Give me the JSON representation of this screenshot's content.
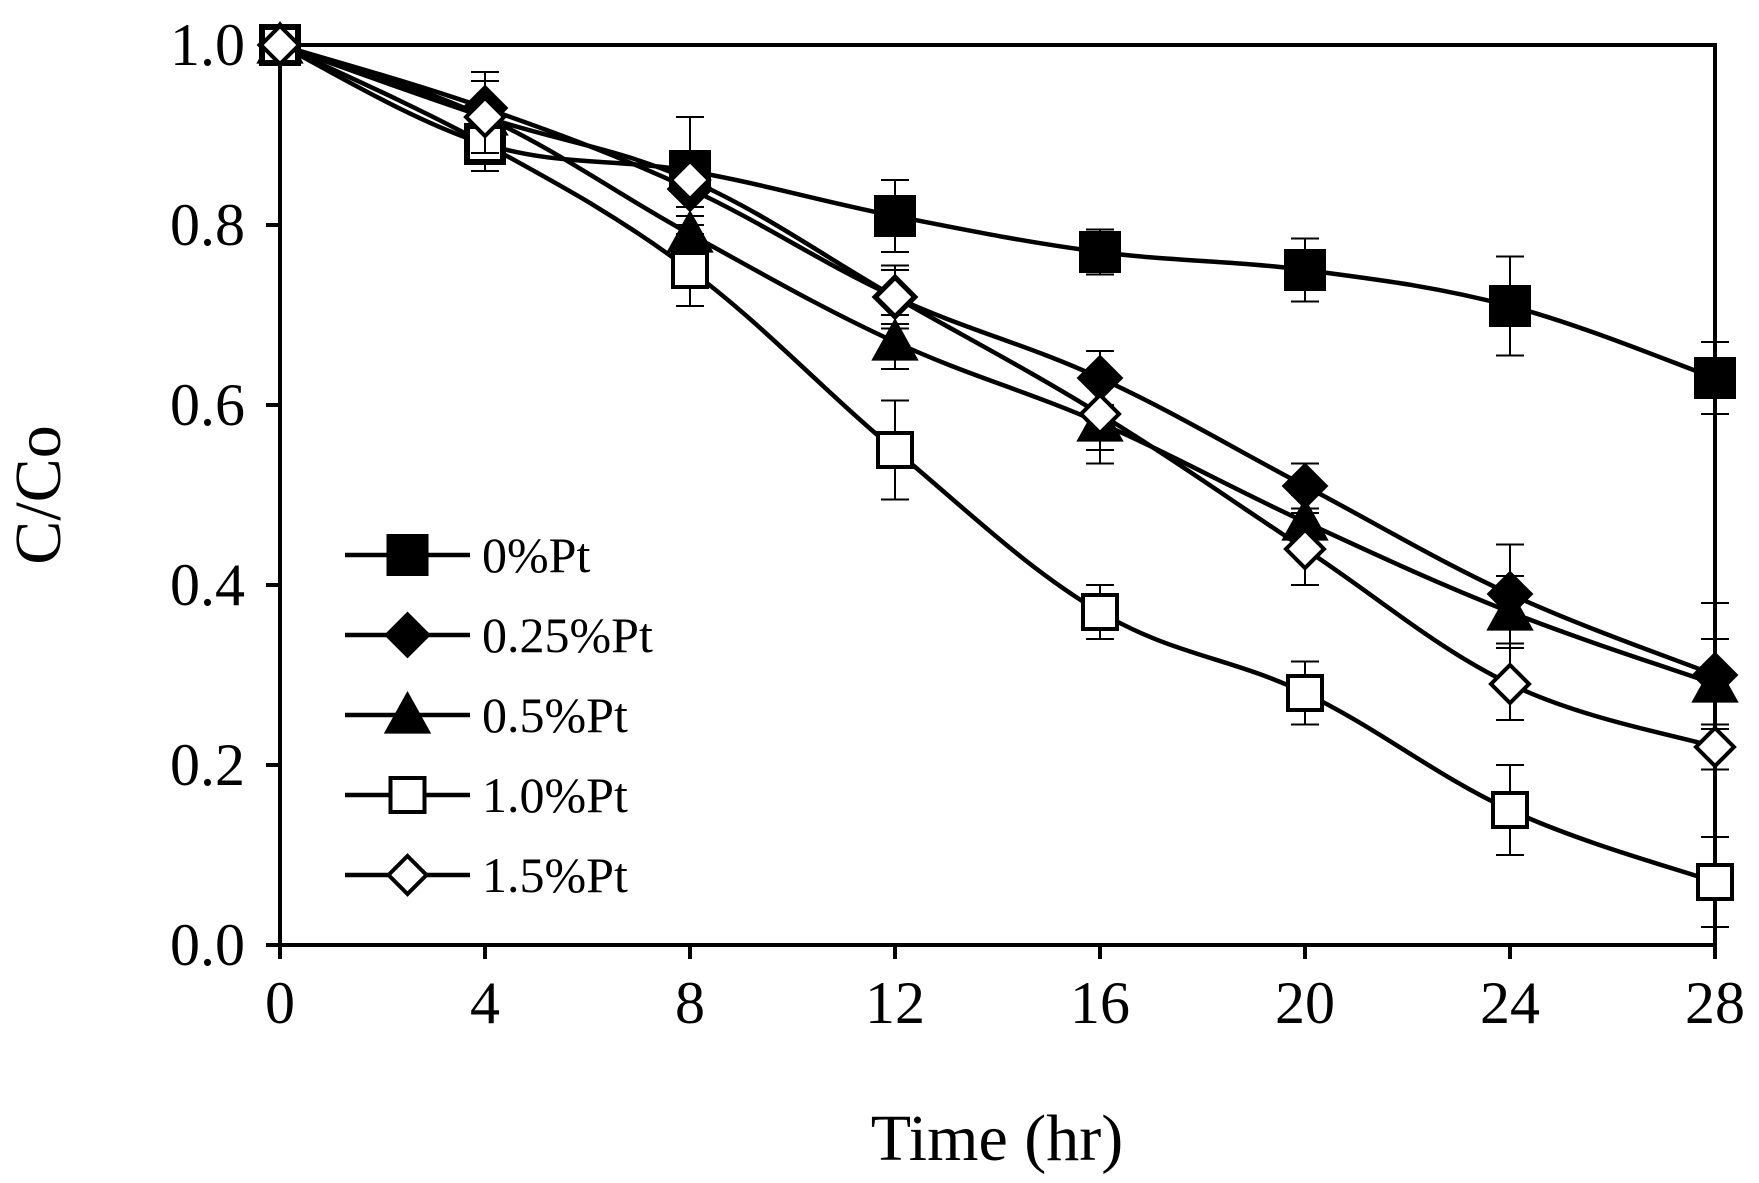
{
  "chart_data": {
    "type": "line",
    "title": "",
    "xlabel": "Time (hr)",
    "ylabel": "C/Co",
    "xlim": [
      0,
      28
    ],
    "ylim": [
      0.0,
      1.0
    ],
    "grid": false,
    "legend_position": "lower-left",
    "x": [
      0,
      4,
      8,
      12,
      16,
      20,
      24,
      28
    ],
    "x_ticks": [
      0,
      4,
      8,
      12,
      16,
      20,
      24,
      28
    ],
    "x_tick_labels": [
      "0",
      "4",
      "8",
      "12",
      "16",
      "20",
      "24",
      "28"
    ],
    "y_ticks": [
      0.0,
      0.2,
      0.4,
      0.6,
      0.8,
      1.0
    ],
    "y_tick_labels": [
      "0.0",
      "0.2",
      "0.4",
      "0.6",
      "0.8",
      "1.0"
    ],
    "series": [
      {
        "name": "0%Pt",
        "marker": "square",
        "filled": true,
        "values": [
          1.0,
          0.89,
          0.86,
          0.81,
          0.77,
          0.75,
          0.71,
          0.63
        ],
        "errors": [
          0.0,
          0.02,
          0.06,
          0.04,
          0.025,
          0.035,
          0.055,
          0.04
        ]
      },
      {
        "name": "0.25%Pt",
        "marker": "diamond",
        "filled": true,
        "values": [
          1.0,
          0.93,
          0.84,
          0.72,
          0.63,
          0.51,
          0.39,
          0.3
        ],
        "errors": [
          0.0,
          0.04,
          0.03,
          0.03,
          0.03,
          0.025,
          0.055,
          0.08
        ]
      },
      {
        "name": "0.5%Pt",
        "marker": "triangle",
        "filled": true,
        "values": [
          1.0,
          0.92,
          0.79,
          0.67,
          0.58,
          0.47,
          0.37,
          0.29
        ],
        "errors": [
          0.0,
          0.04,
          0.03,
          0.03,
          0.045,
          0.03,
          0.04,
          0.05
        ]
      },
      {
        "name": "1.0%Pt",
        "marker": "square",
        "filled": false,
        "values": [
          1.0,
          0.89,
          0.75,
          0.55,
          0.37,
          0.28,
          0.15,
          0.07
        ],
        "errors": [
          0.0,
          0.03,
          0.04,
          0.055,
          0.03,
          0.035,
          0.05,
          0.05
        ]
      },
      {
        "name": "1.5%Pt",
        "marker": "diamond",
        "filled": false,
        "values": [
          1.0,
          0.92,
          0.85,
          0.72,
          0.59,
          0.44,
          0.29,
          0.22
        ],
        "errors": [
          0.0,
          0.04,
          0.03,
          0.035,
          0.04,
          0.04,
          0.04,
          0.025
        ]
      }
    ]
  }
}
